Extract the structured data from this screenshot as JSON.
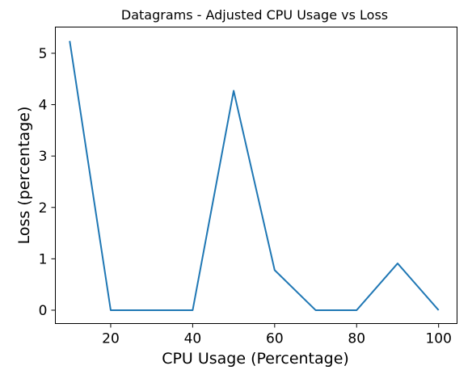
{
  "chart_data": {
    "type": "line",
    "title": "Datagrams - Adjusted CPU Usage vs Loss",
    "xlabel": "CPU Usage (Percentage)",
    "ylabel": "Loss (percentage)",
    "xlim": [
      6.5,
      104.5
    ],
    "ylim": [
      -0.26,
      5.51
    ],
    "xticks": [
      20,
      40,
      60,
      80,
      100
    ],
    "yticks": [
      0,
      1,
      2,
      3,
      4,
      5
    ],
    "grid": false,
    "line_color": "#1f77b4",
    "series": [
      {
        "x": [
          10,
          20,
          30,
          40,
          50,
          60,
          70,
          80,
          90,
          100
        ],
        "values": [
          5.24,
          0,
          0,
          0,
          4.27,
          0.78,
          0,
          0,
          0.91,
          0
        ]
      }
    ]
  }
}
